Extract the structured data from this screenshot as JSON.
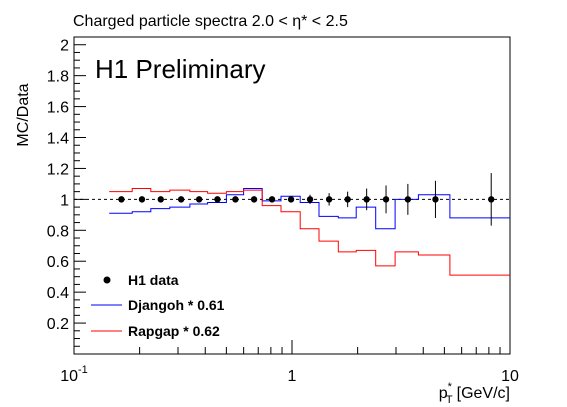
{
  "chart_data": {
    "type": "line",
    "title": "Charged particle spectra 2.0 < η* < 2.5",
    "annotation": "H1 Preliminary",
    "xlabel": "p_T^* [GeV/c]",
    "xlabel_main": "p",
    "xlabel_sup": "*",
    "xlabel_sub": "T",
    "xlabel_unit": "[GeV/c]",
    "ylabel": "MC/Data",
    "x_scale": "log",
    "xlim": [
      0.1,
      10
    ],
    "ylim": [
      0,
      2.05
    ],
    "x_tick_labels": [
      {
        "value": 0.1,
        "base": "10",
        "exp": "-1"
      },
      {
        "value": 1,
        "base": "1",
        "exp": ""
      },
      {
        "value": 10,
        "base": "10",
        "exp": ""
      }
    ],
    "y_ticks": [
      0.2,
      0.4,
      0.6,
      0.8,
      1,
      1.2,
      1.4,
      1.6,
      1.8,
      2
    ],
    "y_tick_labels": [
      "0.2",
      "0.4",
      "0.6",
      "0.8",
      "1",
      "1.2",
      "1.4",
      "1.6",
      "1.8",
      "2"
    ],
    "reference_line": 1,
    "grid": false,
    "legend_position": "bottom-left",
    "series": [
      {
        "name": "H1 data",
        "style": "points",
        "color": "#000000",
        "points": [
          {
            "x": 0.165,
            "y": 1.0,
            "err": 0.012
          },
          {
            "x": 0.205,
            "y": 1.0,
            "err": 0.012
          },
          {
            "x": 0.25,
            "y": 1.0,
            "err": 0.012
          },
          {
            "x": 0.31,
            "y": 1.0,
            "err": 0.012
          },
          {
            "x": 0.375,
            "y": 1.0,
            "err": 0.012
          },
          {
            "x": 0.455,
            "y": 1.0,
            "err": 0.012
          },
          {
            "x": 0.55,
            "y": 1.0,
            "err": 0.015
          },
          {
            "x": 0.67,
            "y": 1.0,
            "err": 0.015
          },
          {
            "x": 0.81,
            "y": 1.0,
            "err": 0.015
          },
          {
            "x": 0.99,
            "y": 1.0,
            "err": 0.02
          },
          {
            "x": 1.21,
            "y": 1.0,
            "err": 0.03
          },
          {
            "x": 1.48,
            "y": 1.0,
            "err": 0.04
          },
          {
            "x": 1.8,
            "y": 1.0,
            "err": 0.05
          },
          {
            "x": 2.2,
            "y": 1.0,
            "err": 0.07
          },
          {
            "x": 2.7,
            "y": 1.0,
            "err": 0.09
          },
          {
            "x": 3.4,
            "y": 1.0,
            "err": 0.1
          },
          {
            "x": 4.55,
            "y": 1.0,
            "err": 0.12
          },
          {
            "x": 8.2,
            "y": 1.0,
            "err": 0.17
          }
        ]
      },
      {
        "name": "Djangoh * 0.61",
        "style": "step",
        "color": "#0000ff",
        "edges": [
          0.145,
          0.185,
          0.225,
          0.275,
          0.34,
          0.41,
          0.5,
          0.6,
          0.73,
          0.89,
          1.09,
          1.33,
          1.63,
          1.97,
          2.42,
          2.97,
          3.8,
          5.3,
          10.0
        ],
        "values": [
          0.91,
          0.92,
          0.94,
          0.95,
          0.97,
          0.98,
          1.03,
          1.07,
          0.99,
          1.02,
          0.98,
          0.89,
          0.88,
          0.95,
          0.81,
          1.0,
          1.03,
          0.88
        ]
      },
      {
        "name": "Rapgap * 0.62",
        "style": "step",
        "color": "#ff0000",
        "edges": [
          0.145,
          0.185,
          0.225,
          0.275,
          0.34,
          0.41,
          0.5,
          0.6,
          0.73,
          0.89,
          1.09,
          1.33,
          1.63,
          1.97,
          2.42,
          2.97,
          3.8,
          5.3,
          10.0
        ],
        "values": [
          1.05,
          1.07,
          1.05,
          1.06,
          1.05,
          1.04,
          1.05,
          1.06,
          0.96,
          0.92,
          0.81,
          0.73,
          0.66,
          0.67,
          0.57,
          0.66,
          0.64,
          0.51
        ]
      }
    ]
  }
}
